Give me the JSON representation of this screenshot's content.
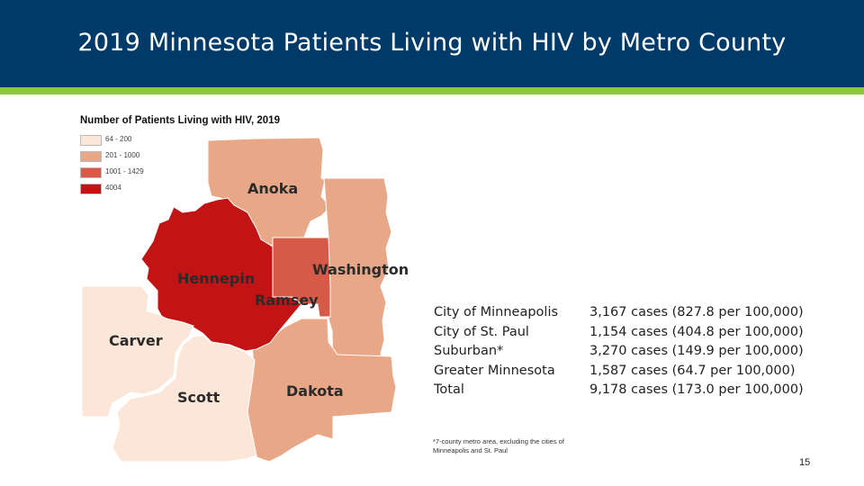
{
  "slide": {
    "title": "2019 Minnesota Patients Living with HIV by Metro County",
    "page_number": "15"
  },
  "colors": {
    "header_bg": "#003a68",
    "header_stripe": "#8cc63f",
    "range_1": "#fbe6d8",
    "range_2": "#e8a887",
    "range_3": "#d55a47",
    "range_4": "#c21414"
  },
  "map": {
    "legend_title": "Number of Patients Living with HIV, 2019",
    "legend": [
      {
        "label": "64 - 200",
        "color": "#fbe6d8"
      },
      {
        "label": "201 - 1000",
        "color": "#e8a887"
      },
      {
        "label": "1001 - 1429",
        "color": "#d55a47"
      },
      {
        "label": "4004",
        "color": "#c21414"
      }
    ],
    "counties": [
      {
        "name": "Anoka",
        "range": "201 - 1000"
      },
      {
        "name": "Washington",
        "range": "201 - 1000"
      },
      {
        "name": "Hennepin",
        "range": "4004"
      },
      {
        "name": "Ramsey",
        "range": "1001 - 1429"
      },
      {
        "name": "Carver",
        "range": "64 - 200"
      },
      {
        "name": "Scott",
        "range": "64 - 200"
      },
      {
        "name": "Dakota",
        "range": "201 - 1000"
      }
    ]
  },
  "stats": {
    "rows": [
      {
        "label": "City of Minneapolis",
        "value": "3,167 cases (827.8 per 100,000)"
      },
      {
        "label": "City of St. Paul",
        "value": "1,154 cases (404.8 per 100,000)"
      },
      {
        "label": "Suburban*",
        "value": "3,270 cases (149.9 per 100,000)"
      },
      {
        "label": "Greater Minnesota",
        "value": "1,587 cases (64.7 per 100,000)"
      },
      {
        "label": "Total",
        "value": "9,178 cases (173.0 per 100,000)"
      }
    ],
    "footnote": "*7-county metro area, excluding the cities of Minneapolis and St. Paul"
  }
}
